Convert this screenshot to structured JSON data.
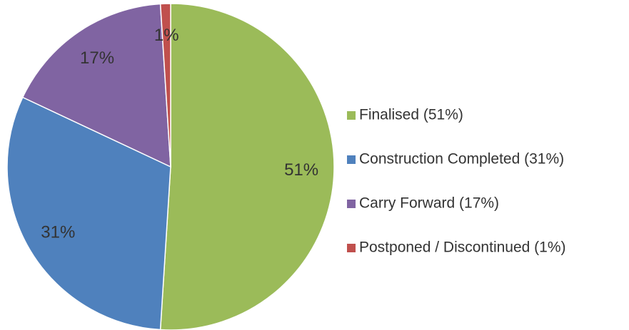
{
  "chart_data": {
    "type": "pie",
    "categories": [
      "Finalised (51%)",
      "Construction Completed (31%)",
      "Carry Forward (17%)",
      "Postponed / Discontinued (1%)"
    ],
    "values": [
      51,
      31,
      17,
      1
    ],
    "value_labels": [
      "51%",
      "31%",
      "17%",
      "1%"
    ],
    "colors": [
      "#9bbb59",
      "#4f81bd",
      "#8064a2",
      "#c0504d"
    ],
    "legend": "right"
  }
}
